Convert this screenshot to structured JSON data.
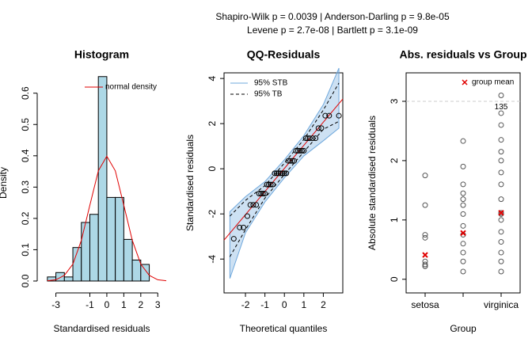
{
  "suptitle": [
    "Shapiro-Wilk p = 0.0039 | Anderson-Darling p = 9.8e-05",
    "Levene p = 2.7e-08 | Bartlett p = 3.1e-09"
  ],
  "chart_data": [
    {
      "type": "histogram",
      "title": "Histogram",
      "x_label": "Standardised residuals",
      "y_label": "Density",
      "bins": [
        -3.5,
        -3,
        -2.5,
        -2,
        -1.5,
        -1,
        -0.5,
        0,
        0.5,
        1,
        1.5,
        2,
        2.5
      ],
      "values": [
        0.013,
        0.027,
        0.013,
        0.107,
        0.187,
        0.213,
        0.653,
        0.267,
        0.267,
        0.133,
        0.067,
        0.053
      ],
      "color": "#add8e6",
      "density_curve": {
        "name": "normal density",
        "color": "#e00000",
        "x": [
          -3.5,
          -3,
          -2.5,
          -2,
          -1.5,
          -1,
          -0.5,
          0,
          0.5,
          1,
          1.5,
          2,
          2.5,
          3,
          3.5
        ],
        "y": [
          0.001,
          0.004,
          0.018,
          0.054,
          0.13,
          0.242,
          0.352,
          0.399,
          0.352,
          0.242,
          0.13,
          0.054,
          0.018,
          0.004,
          0.001
        ]
      },
      "xlim": [
        -4.1,
        3.5
      ],
      "ylim": [
        -0.038,
        0.665
      ],
      "xticks": [
        -3,
        -1,
        0,
        1,
        2,
        3
      ],
      "yticks": [
        {
          "value": 0,
          "label": "0.0"
        },
        0.1,
        0.2,
        0.3,
        0.4,
        0.5,
        0.6
      ],
      "legend": "top-right"
    },
    {
      "type": "qq",
      "title": "QQ-Residuals",
      "x_label": "Theoretical quantiles",
      "y_label": "Standardised residuals",
      "x": [
        -2.6,
        -2.3,
        -2.1,
        -1.9,
        -1.75,
        -1.6,
        -1.45,
        -1.3,
        -1.2,
        -1.1,
        -1.0,
        -0.9,
        -0.8,
        -0.7,
        -0.6,
        -0.5,
        -0.4,
        -0.3,
        -0.2,
        -0.1,
        0,
        0.1,
        0.2,
        0.3,
        0.4,
        0.5,
        0.6,
        0.7,
        0.8,
        0.9,
        1.0,
        1.1,
        1.2,
        1.3,
        1.45,
        1.6,
        1.75,
        1.9,
        2.1,
        2.3,
        2.8
      ],
      "y": [
        -3.1,
        -2.6,
        -2.6,
        -2.1,
        -1.6,
        -1.6,
        -1.6,
        -1.1,
        -1.1,
        -1.1,
        -1.1,
        -0.7,
        -0.7,
        -0.7,
        -0.7,
        -0.2,
        -0.2,
        -0.2,
        -0.2,
        -0.2,
        -0.2,
        -0.2,
        0.35,
        0.35,
        0.35,
        0.35,
        0.8,
        0.8,
        0.8,
        0.8,
        0.8,
        1.35,
        1.35,
        1.35,
        1.35,
        1.35,
        1.8,
        1.8,
        2.35,
        2.35,
        2.35
      ],
      "reference_line": {
        "color": "#e00000",
        "x": [
          -3.1,
          3.0
        ],
        "y": [
          -3.16,
          3.09
        ]
      },
      "stb": {
        "name": "95% STB",
        "color": "#6fa8dc",
        "x": [
          -2.8,
          -2,
          -1,
          0,
          1,
          2,
          2.8
        ],
        "lower": [
          -4.86,
          -2.84,
          -1.47,
          -0.4,
          0.57,
          1.24,
          1.8
        ],
        "upper": [
          -1.9,
          -1.24,
          -0.57,
          0.4,
          1.47,
          2.84,
          4.46
        ]
      },
      "tb": {
        "name": "95% TB",
        "color": "#000000",
        "x": [
          -2.8,
          -2,
          -1,
          0,
          1,
          2,
          2.8
        ],
        "lower": [
          -3.9,
          -2.7,
          -1.3,
          -0.25,
          0.75,
          1.75,
          2.1
        ],
        "upper": [
          -2.1,
          -1.4,
          -0.75,
          0.25,
          1.3,
          2.6,
          3.8
        ]
      },
      "xlim": [
        -3.1,
        3.0
      ],
      "ylim": [
        -5.5,
        4.25
      ],
      "xticks": [
        -2,
        -1,
        0,
        1,
        2
      ],
      "yticks": [
        -4,
        -2,
        0,
        2,
        4
      ],
      "legend": "top-left"
    },
    {
      "type": "strip",
      "title": "Abs. residuals vs Group",
      "x_label": "Group",
      "y_label": "Absolute standardised residuals",
      "categories": [
        "setosa",
        null,
        "virginica"
      ],
      "groups": [
        [
          0.22,
          0.22,
          0.25,
          0.3,
          0.7,
          0.75,
          1.25,
          1.75
        ],
        [
          0.13,
          0.3,
          0.45,
          0.6,
          0.75,
          0.9,
          1.1,
          1.25,
          1.35,
          1.45,
          1.6,
          1.9,
          2.33
        ],
        [
          0.13,
          0.3,
          0.45,
          0.63,
          0.8,
          1.0,
          1.1,
          1.12,
          1.35,
          1.6,
          1.8,
          2.0,
          2.15,
          2.35,
          2.6,
          2.8,
          3.1
        ]
      ],
      "means": {
        "name": "group mean",
        "color": "#e00000",
        "values": [
          0.41,
          0.78,
          1.12
        ]
      },
      "threshold": 3,
      "threshold_color": "#cccccc",
      "annotations": [
        {
          "text": "135",
          "x": 2,
          "y": 3.1
        }
      ],
      "ylim": [
        -0.23,
        3.48
      ],
      "yticks": [
        0,
        1,
        2,
        3
      ],
      "legend": "top-right"
    }
  ]
}
